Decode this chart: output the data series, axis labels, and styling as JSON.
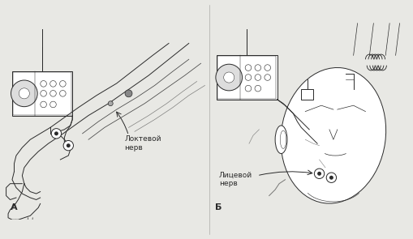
{
  "bg_color": "#e8e8e4",
  "line_color": "#2a2a2a",
  "label_A": "А",
  "label_B": "Б",
  "text_ulnar": "Локтевой\nнерв",
  "text_facial": "Лицевой\nнерв",
  "fig_width": 5.1,
  "fig_height": 2.95,
  "dpi": 100
}
